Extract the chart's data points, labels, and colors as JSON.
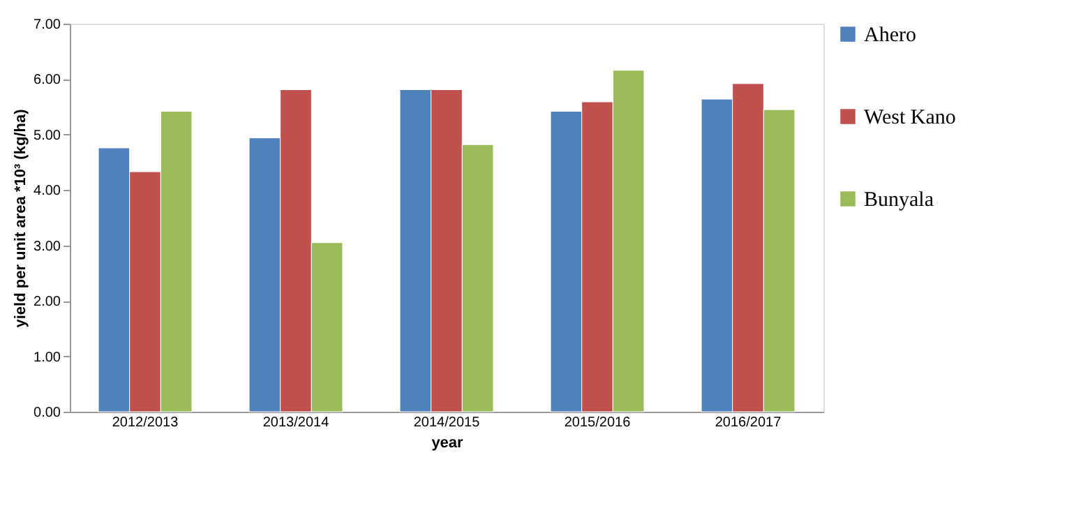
{
  "chart_data": {
    "type": "bar",
    "xlabel": "year",
    "ylabel": "yield per unit area *10³ (kg/ha)",
    "categories": [
      "2012/2013",
      "2013/2014",
      "2014/2015",
      "2015/2016",
      "2016/2017"
    ],
    "series": [
      {
        "name": "Ahero",
        "color": "#4f81bd",
        "values": [
          4.76,
          4.94,
          5.81,
          5.42,
          5.64
        ]
      },
      {
        "name": "West Kano",
        "color": "#c0504d",
        "values": [
          4.33,
          5.81,
          5.81,
          5.59,
          5.92
        ]
      },
      {
        "name": "Bunyala",
        "color": "#9bbb59",
        "values": [
          5.42,
          3.05,
          4.82,
          6.16,
          5.45
        ]
      }
    ],
    "ylim": [
      0,
      7
    ],
    "yticks": [
      {
        "value": 0,
        "label": "0.00"
      },
      {
        "value": 1,
        "label": "1.00"
      },
      {
        "value": 2,
        "label": "2.00"
      },
      {
        "value": 3,
        "label": "3.00"
      },
      {
        "value": 4,
        "label": "4.00"
      },
      {
        "value": 5,
        "label": "5.00"
      },
      {
        "value": 6,
        "label": "6.00"
      },
      {
        "value": 7,
        "label": "7.00"
      }
    ],
    "grid": false,
    "legend": "right"
  }
}
